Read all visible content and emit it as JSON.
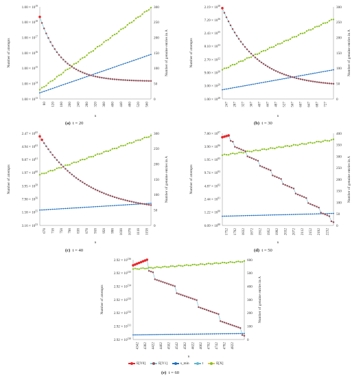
{
  "legend": [
    {
      "label": "E[Y0]",
      "color": "#e8262a"
    },
    {
      "label": "E[Y1]",
      "color": "#9a4f58"
    },
    {
      "label": "s_min",
      "color": "#1f6fbf"
    },
    {
      "label": "t",
      "color": "#64b6cf"
    },
    {
      "label": "E[X]",
      "color": "#7fc21f"
    }
  ],
  "colors": {
    "y0": "#e8262a",
    "y1_line": "#76c7d4",
    "y1_marker": "#9a4f58",
    "smin": "#1f6fbf",
    "ex": "#7fc21f",
    "ex_line": "#e4c24a"
  },
  "chart_data": [
    {
      "id": "a",
      "caption_letter": "(a)",
      "caption_t": "t = 20",
      "type": "line",
      "xlabel": "n",
      "ylabel_left": "Number of attempts",
      "ylabel_right": "Number of  genuine entries in A",
      "x_ticks": [
        "80",
        "120",
        "160",
        "200",
        "240",
        "280",
        "320",
        "360",
        "400",
        "440",
        "480",
        "520",
        "560"
      ],
      "y_left_ticks": [
        "1.00 × 10^13",
        "1.00 × 10^14",
        "1.00 × 10^15",
        "1.00 × 10^16",
        "1.00 × 10^17",
        "1.00 × 10^18",
        "1.00 × 10^19"
      ],
      "y_left_log_range": [
        13,
        19
      ],
      "y_right_ticks": [
        "0",
        "50",
        "100",
        "150",
        "200",
        "250",
        "300"
      ],
      "y_right_range": [
        0,
        300
      ],
      "x_range": [
        80,
        560
      ],
      "x_step": 10,
      "x_pad": [
        2,
        2
      ],
      "attempts": {
        "start_log": 18.35,
        "mid_log": 15.2,
        "end_log": 14.15,
        "decay": 5.0,
        "y0_count": 1,
        "steps": 0
      },
      "smin": {
        "start": 20,
        "end": 145
      },
      "ex": {
        "start": 30,
        "end": 297
      }
    },
    {
      "id": "b",
      "caption_letter": "(b)",
      "caption_t": "t = 30",
      "type": "line",
      "xlabel": "n",
      "ylabel_left": "Number of attempts",
      "ylabel_right": "Number of  genuine entries in A",
      "x_ticks": [
        "247",
        "287",
        "327",
        "367",
        "407",
        "447",
        "487",
        "527",
        "567",
        "607",
        "647",
        "687",
        "727"
      ],
      "y_left_ticks": [
        "1.00 × 10^28",
        "3.00 × 10^29",
        "9.00 × 10^30",
        "2.70 × 10^32",
        "8.10 × 10^33",
        "2.43 × 10^35",
        "7.29 × 10^36",
        "2.19 × 10^38"
      ],
      "y_left_log_range": [
        28,
        38.34
      ],
      "y_right_ticks": [
        "0",
        "50",
        "100",
        "150",
        "200",
        "250",
        "300"
      ],
      "y_right_range": [
        0,
        300
      ],
      "x_range": [
        247,
        727
      ],
      "x_step": 10,
      "x_pad": [
        2,
        4
      ],
      "attempts": {
        "start_log": 38.2,
        "mid_log": 32.2,
        "end_log": 29.4,
        "decay": 3.2,
        "y0_count": 1,
        "steps": 0
      },
      "smin": {
        "start": 30,
        "end": 95
      },
      "ex": {
        "start": 95,
        "end": 260
      }
    },
    {
      "id": "c",
      "caption_letter": "(c)",
      "caption_t": "t = 40",
      "type": "line",
      "xlabel": "n",
      "ylabel_left": "Number of attempts",
      "ylabel_right": "Number of  genuine entries in A",
      "x_ticks": [
        "678",
        "718",
        "758",
        "798",
        "838",
        "878",
        "918",
        "958",
        "998",
        "1038",
        "1078",
        "1118",
        "1158"
      ],
      "y_left_ticks": [
        "3.16 × 10^53",
        "1.58 × 10^55",
        "7.90 × 10^56",
        "3.95 × 10^58",
        "1.97 × 10^60",
        "9.87 × 10^61",
        "4.94 × 10^63",
        "2.47 × 10^65"
      ],
      "y_left_log_range": [
        53.5,
        65.39
      ],
      "y_right_ticks": [
        "0",
        "50",
        "100",
        "150",
        "200",
        "250",
        "300"
      ],
      "y_right_range": [
        0,
        300
      ],
      "x_range": [
        678,
        1158
      ],
      "x_step": 10,
      "x_pad": [
        2,
        2
      ],
      "attempts": {
        "start_log": 65.0,
        "mid_log": 59.0,
        "end_log": 55.3,
        "decay": 2.3,
        "y0_count": 2,
        "steps": 0
      },
      "smin": {
        "start": 50,
        "end": 72
      },
      "ex": {
        "start": 165,
        "end": 292
      }
    },
    {
      "id": "d",
      "caption_letter": "(d)",
      "caption_t": "t = 50",
      "type": "line",
      "xlabel": "n",
      "ylabel_left": "Number of attempts",
      "ylabel_right": "Number of  genuine entries in A",
      "x_ticks": [
        "1752",
        "1792",
        "1832",
        "1872",
        "1912",
        "1952",
        "1992",
        "2032",
        "2072",
        "2112",
        "2152",
        "2192",
        "2232"
      ],
      "y_left_ticks": [
        "6.09 × 10^88",
        "1.22 × 10^90",
        "2.44 × 10^91",
        "4.87 × 10^92",
        "9.74 × 10^93",
        "1.95 × 10^95",
        "3.90 × 10^96",
        "7.80 × 10^97"
      ],
      "y_left_log_range": [
        88.78,
        97.89
      ],
      "y_right_ticks": [
        "0",
        "50",
        "100",
        "150",
        "200",
        "250",
        "300",
        "350",
        "400"
      ],
      "y_right_range": [
        0,
        400
      ],
      "x_range": [
        1752,
        2232
      ],
      "x_step": 10,
      "x_pad": [
        2,
        3
      ],
      "attempts": {
        "start_log": 97.5,
        "mid_log": 93.5,
        "end_log": 89.1,
        "decay": 1.5,
        "y0_count": 4,
        "steps": 9
      },
      "smin": {
        "start": 40,
        "end": 52
      },
      "ex": {
        "start": 305,
        "end": 372
      }
    },
    {
      "id": "e",
      "caption_letter": "(e)",
      "caption_t": "t = 60",
      "type": "line",
      "xlabel": "n",
      "ylabel_left": "Number of attempts",
      "ylabel_right": "Number of  genuine entries in A",
      "x_ticks": [
        "4342",
        "4382",
        "4422",
        "4462",
        "4502",
        "4542",
        "4582",
        "4622",
        "4662",
        "4702",
        "4742",
        "4782",
        "4822"
      ],
      "y_left_ticks": [
        "2.92 × 10^130",
        "2.92 × 10^131",
        "2.92 × 10^132",
        "2.92 × 10^133",
        "2.92 × 10^134",
        "2.92 × 10^135",
        "2.92 × 10^136"
      ],
      "y_left_log_range": [
        130.4654,
        136.4654
      ],
      "y_right_ticks": [
        "0",
        "100",
        "200",
        "300",
        "400",
        "500",
        "600"
      ],
      "y_right_range": [
        0,
        600
      ],
      "x_range": [
        4342,
        4822
      ],
      "x_step": 10,
      "x_pad": [
        2,
        6
      ],
      "attempts": {
        "start_log": 136.05,
        "mid_log": 133.0,
        "end_log": 130.75,
        "decay": 1.2,
        "y0_count": 8,
        "steps": 5
      },
      "smin": {
        "start": 35,
        "end": 45
      },
      "ex": {
        "start": 530,
        "end": 588
      }
    }
  ]
}
